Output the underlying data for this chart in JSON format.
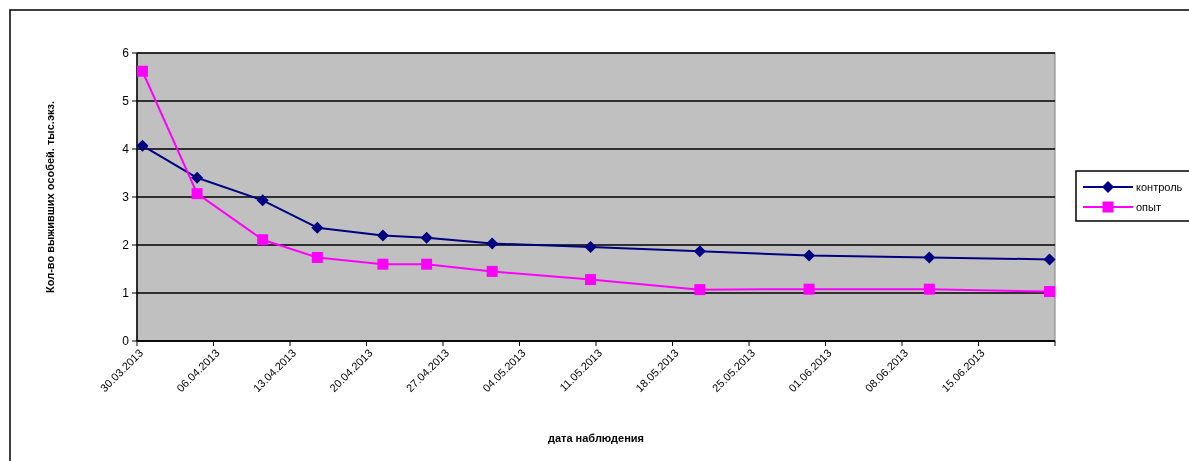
{
  "chart_data": {
    "type": "line",
    "xlabel": "дата наблюдения",
    "ylabel": "Кол-во выживших особей. тыс.экз.",
    "x": [
      "2013-03-30T12:00",
      "2013-04-04T12:00",
      "2013-04-10T12:00",
      "2013-04-15T12:00",
      "2013-04-21T12:00",
      "2013-04-25T12:00",
      "2013-05-01T12:00",
      "2013-05-10T12:00",
      "2013-05-20T12:00",
      "2013-05-30T12:00",
      "2013-06-10T12:00",
      "2013-06-21T12:00"
    ],
    "series": [
      {
        "name": "контроль",
        "color": "#000080",
        "marker": "diamond",
        "values": [
          4.07,
          3.4,
          2.93,
          2.36,
          2.2,
          2.15,
          2.03,
          1.96,
          1.87,
          1.78,
          1.74,
          1.7
        ]
      },
      {
        "name": "опыт",
        "color": "#ff00ff",
        "marker": "square",
        "values": [
          5.62,
          3.07,
          2.11,
          1.74,
          1.6,
          1.6,
          1.45,
          1.28,
          1.07,
          1.08,
          1.08,
          1.03
        ]
      }
    ],
    "xlim": [
      "2013-03-30",
      "2013-06-22"
    ],
    "xticks": [
      {
        "value": "2013-03-30",
        "label": "30.03.2013"
      },
      {
        "value": "2013-04-06",
        "label": "06.04.2013"
      },
      {
        "value": "2013-04-13",
        "label": "13.04.2013"
      },
      {
        "value": "2013-04-20",
        "label": "20.04.2013"
      },
      {
        "value": "2013-04-27",
        "label": "27.04.2013"
      },
      {
        "value": "2013-05-04",
        "label": "04.05.2013"
      },
      {
        "value": "2013-05-11",
        "label": "11.05.2013"
      },
      {
        "value": "2013-05-18",
        "label": "18.05.2013"
      },
      {
        "value": "2013-05-25",
        "label": "25.05.2013"
      },
      {
        "value": "2013-06-01",
        "label": "01.06.2013"
      },
      {
        "value": "2013-06-08",
        "label": "08.06.2013"
      },
      {
        "value": "2013-06-15",
        "label": "15.06.2013"
      },
      {
        "value": "2013-06-22",
        "label": null
      }
    ],
    "ylim": [
      0,
      6
    ],
    "yticks": [
      0,
      1,
      2,
      3,
      4,
      5,
      6
    ],
    "grid": "y",
    "legend": "right"
  }
}
